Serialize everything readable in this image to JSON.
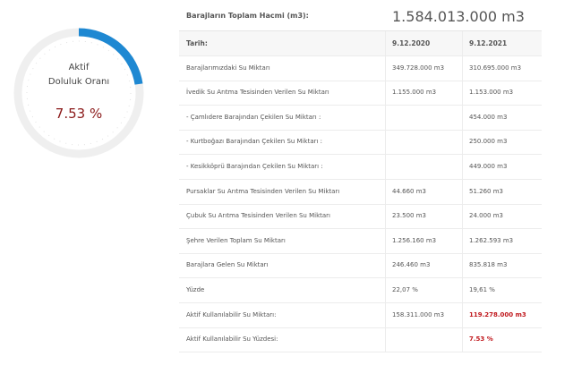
{
  "gauge": {
    "line1": "Aktif",
    "line2": "Doluluk Oranı",
    "value": "7.53 %"
  },
  "table": {
    "title": "Barajların Toplam Hacmi (m3):",
    "total": "1.584.013.000 m3",
    "header": [
      "Tarih:",
      "9.12.2020",
      "9.12.2021"
    ],
    "rows": [
      [
        "Barajlarımızdaki Su Miktarı",
        "349.728.000 m3",
        "310.695.000 m3"
      ],
      [
        "İvedik Su Arıtma Tesisinden Verilen Su Miktarı",
        "1.155.000 m3",
        "1.153.000 m3"
      ],
      [
        "- Çamlıdere Barajından Çekilen Su Miktarı :",
        null,
        "454.000 m3"
      ],
      [
        "- Kurtboğazı Barajından Çekilen Su Miktarı :",
        null,
        "250.000 m3"
      ],
      [
        "- Kesikköprü Barajından Çekilen Su Miktarı :",
        null,
        "449.000 m3"
      ],
      [
        "Pursaklar Su Arıtma Tesisinden Verilen Su Miktarı",
        "44.660 m3",
        "51.260 m3"
      ],
      [
        "Çubuk Su Arıtma Tesisinden Verilen Su Miktarı",
        "23.500 m3",
        "24.000 m3"
      ],
      [
        "Şehre Verilen Toplam Su Miktarı",
        "1.256.160 m3",
        "1.262.593 m3"
      ],
      [
        "Barajlara Gelen Su Miktarı",
        "246.460 m3",
        "835.818 m3"
      ],
      [
        "Yüzde",
        "22,07 %",
        "19,61 %"
      ],
      [
        "Aktif Kullanılabilir Su Miktarı:",
        "158.311.000 m3",
        "119.278.000 m3"
      ],
      [
        "Aktif Kullanılabilir Su Yüzdesi:",
        null,
        "7.53 %"
      ]
    ],
    "highlight_rows": [
      10,
      11
    ]
  }
}
